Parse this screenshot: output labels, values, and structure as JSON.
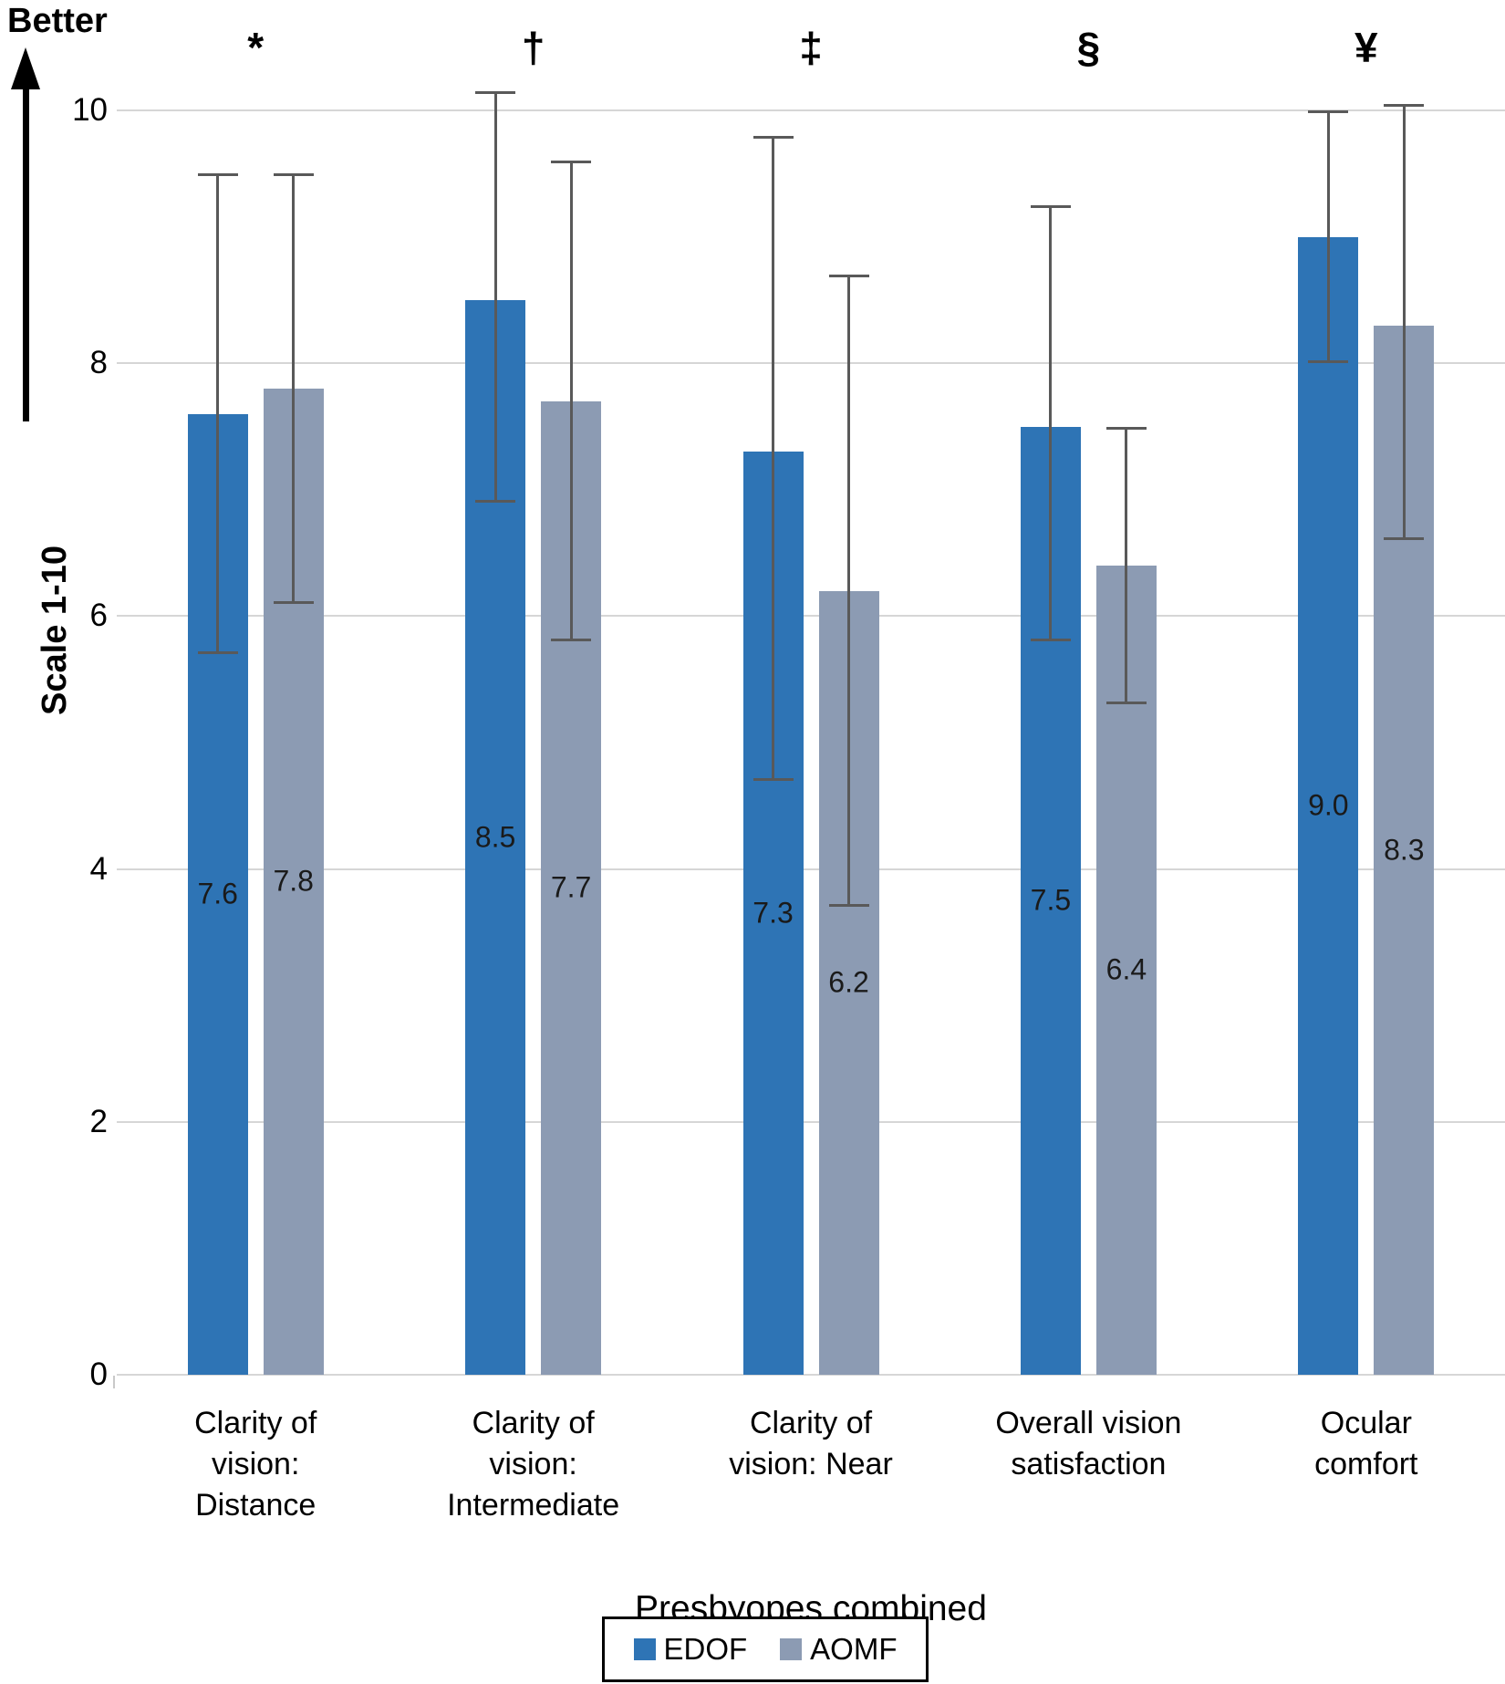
{
  "y_axis": {
    "title": "Scale 1-10",
    "direction_label": "Better",
    "ticks": [
      0,
      2,
      4,
      6,
      8,
      10
    ]
  },
  "x_axis": {
    "title": "Presbyopes combined"
  },
  "legend": {
    "items": [
      {
        "label": "EDOF",
        "color": "#2E74B5"
      },
      {
        "label": "AOMF",
        "color": "#8C9BB3"
      }
    ]
  },
  "colors": {
    "edof_blue": "#2E74B5",
    "aomf_gray": "#8C9BB3",
    "error_bar": "#595959",
    "gridline": "#D6D6D6"
  },
  "chart_data": {
    "type": "bar",
    "title": "",
    "xlabel": "Presbyopes combined",
    "ylabel": "Scale 1-10",
    "ylim": [
      0,
      10
    ],
    "grid": true,
    "legend_position": "bottom",
    "categories": [
      "Clarity of\nvision:\nDistance",
      "Clarity of\nvision:\nIntermediate",
      "Clarity of\nvision: Near",
      "Overall vision\nsatisfaction",
      "Ocular\ncomfort"
    ],
    "category_symbols": [
      "*",
      "†",
      "‡",
      "§",
      "¥"
    ],
    "series": [
      {
        "name": "EDOF",
        "color": "#2E74B5",
        "values": [
          7.6,
          8.5,
          7.3,
          7.5,
          9.0
        ],
        "labels": [
          "7.6",
          "8.5",
          "7.3",
          "7.5",
          "9.0"
        ],
        "error_low": [
          5.7,
          6.9,
          4.7,
          5.8,
          8.0
        ],
        "error_high": [
          9.5,
          10.15,
          9.8,
          9.25,
          10.0
        ]
      },
      {
        "name": "AOMF",
        "color": "#8C9BB3",
        "values": [
          7.8,
          7.7,
          6.2,
          6.4,
          8.3
        ],
        "labels": [
          "7.8",
          "7.7",
          "6.2",
          "6.4",
          "8.3"
        ],
        "error_low": [
          6.1,
          5.8,
          3.7,
          5.3,
          6.6
        ],
        "error_high": [
          9.5,
          9.6,
          8.7,
          7.5,
          10.05
        ]
      }
    ]
  }
}
